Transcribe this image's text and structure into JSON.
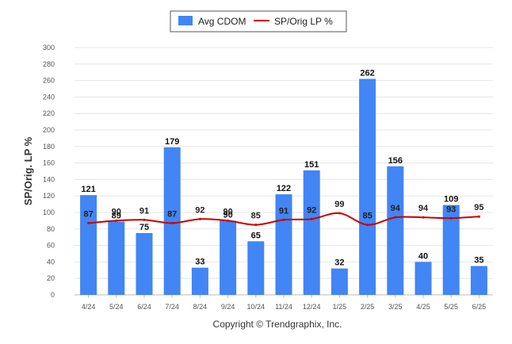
{
  "chart_data": {
    "type": "bar",
    "categories": [
      "4/24",
      "5/24",
      "6/24",
      "7/24",
      "8/24",
      "9/24",
      "10/24",
      "11/24",
      "12/24",
      "1/25",
      "2/25",
      "3/25",
      "4/25",
      "5/25",
      "6/25"
    ],
    "series": [
      {
        "name": "Avg CDOM",
        "type": "bar",
        "color": "#4285f4",
        "values": [
          121,
          89,
          75,
          179,
          33,
          90,
          65,
          122,
          151,
          32,
          262,
          156,
          40,
          109,
          35
        ]
      },
      {
        "name": "SP/Orig LP %",
        "type": "line",
        "color": "#cc0000",
        "values": [
          87,
          90,
          91,
          87,
          92,
          90,
          85,
          91,
          92,
          99,
          85,
          94,
          94,
          93,
          95
        ]
      }
    ],
    "ylabel": "SP/Orig. LP %",
    "ylim": [
      0,
      300
    ],
    "yticks": [
      0,
      20,
      40,
      60,
      80,
      100,
      120,
      140,
      160,
      180,
      200,
      220,
      240,
      260,
      280,
      300
    ],
    "grid": true,
    "legend_position": "top-center",
    "credit": "Copyright © Trendgraphix, Inc."
  }
}
